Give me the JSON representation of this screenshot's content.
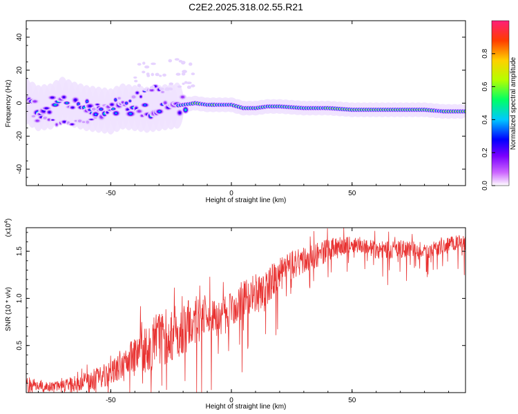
{
  "title": "C2E2.2025.318.02.55.R21",
  "chart_data": [
    {
      "type": "heatmap",
      "xlabel": "Height of straight line (km)",
      "ylabel": "Frequency (Hz)",
      "xlim": [
        -85,
        97
      ],
      "ylim": [
        -50,
        50
      ],
      "xticks": [
        -50,
        0,
        50
      ],
      "yticks": [
        40,
        20,
        0,
        -20,
        -40
      ],
      "ridge": [
        {
          "x": -85,
          "f": 1.0
        },
        {
          "x": -80,
          "f": -3.0
        },
        {
          "x": -75,
          "f": -2.0
        },
        {
          "x": -70,
          "f": 2.0
        },
        {
          "x": -65,
          "f": -1.0
        },
        {
          "x": -60,
          "f": -3.0
        },
        {
          "x": -55,
          "f": -4.0
        },
        {
          "x": -50,
          "f": -5.0
        },
        {
          "x": -45,
          "f": -2.0
        },
        {
          "x": -40,
          "f": -3.0
        },
        {
          "x": -35,
          "f": -4.0
        },
        {
          "x": -30,
          "f": -3.0
        },
        {
          "x": -25,
          "f": -2.0
        },
        {
          "x": -20,
          "f": -1.0
        },
        {
          "x": -15,
          "f": 0.0
        },
        {
          "x": -10,
          "f": -1.0
        },
        {
          "x": -5,
          "f": -1.0
        },
        {
          "x": 0,
          "f": -1.0
        },
        {
          "x": 5,
          "f": -3.0
        },
        {
          "x": 10,
          "f": -3.0
        },
        {
          "x": 15,
          "f": -2.0
        },
        {
          "x": 20,
          "f": -2.0
        },
        {
          "x": 30,
          "f": -3.0
        },
        {
          "x": 40,
          "f": -3.0
        },
        {
          "x": 50,
          "f": -4.0
        },
        {
          "x": 60,
          "f": -4.0
        },
        {
          "x": 70,
          "f": -4.0
        },
        {
          "x": 80,
          "f": -4.0
        },
        {
          "x": 88,
          "f": -5.0
        },
        {
          "x": 97,
          "f": -5.0
        }
      ],
      "secondary_trace": [
        {
          "x": -60,
          "f": -6.0
        },
        {
          "x": -50,
          "f": 0.0
        },
        {
          "x": -40,
          "f": 4.0
        },
        {
          "x": -30,
          "f": 8.0
        }
      ],
      "lower_trace": [
        {
          "x": -82,
          "f": -9.0
        },
        {
          "x": -72,
          "f": -12.0
        },
        {
          "x": -62,
          "f": -11.0
        },
        {
          "x": -55,
          "f": -9.0
        }
      ]
    },
    {
      "type": "colorbar",
      "label": "Normalized spectral amplitude",
      "range": [
        0.0,
        1.0
      ],
      "ticks": [
        "0.0",
        "0.2",
        "0.4",
        "0.6",
        "0.8"
      ]
    },
    {
      "type": "line",
      "xlabel": "Height of straight line (km)",
      "ylabel": "SNR (10 * v/v)",
      "scale_label": "(x10",
      "scale_exp": "4",
      "scale_close": ")",
      "xlim": [
        -85,
        97
      ],
      "ylim": [
        0.0,
        1.75
      ],
      "xticks": [
        -50,
        0,
        50
      ],
      "yticks": [
        0.5,
        1.0,
        1.5
      ],
      "color": "#e8302f",
      "series": [
        {
          "x": [
            -85,
            -80,
            -75,
            -70,
            -65,
            -60,
            -55,
            -50,
            -45,
            -40,
            -35,
            -30,
            -25,
            -20,
            -15,
            -10,
            -5,
            0,
            5,
            10,
            15,
            20,
            25,
            30,
            35,
            40,
            45,
            50,
            55,
            60,
            65,
            70,
            75,
            80,
            85,
            90,
            95,
            97
          ],
          "values": [
            0.12,
            0.1,
            0.08,
            0.1,
            0.12,
            0.15,
            0.2,
            0.25,
            0.35,
            0.45,
            0.55,
            0.65,
            0.7,
            0.75,
            0.85,
            0.9,
            0.85,
            0.95,
            1.05,
            1.1,
            1.2,
            1.3,
            1.4,
            1.45,
            1.5,
            1.55,
            1.58,
            1.6,
            1.58,
            1.55,
            1.55,
            1.55,
            1.55,
            1.52,
            1.55,
            1.6,
            1.62,
            1.6
          ],
          "amp": [
            0.08,
            0.06,
            0.05,
            0.06,
            0.08,
            0.1,
            0.12,
            0.14,
            0.18,
            0.22,
            0.28,
            0.3,
            0.3,
            0.28,
            0.25,
            0.22,
            0.22,
            0.22,
            0.22,
            0.22,
            0.2,
            0.18,
            0.16,
            0.15,
            0.14,
            0.12,
            0.1,
            0.08,
            0.08,
            0.1,
            0.1,
            0.1,
            0.08,
            0.08,
            0.08,
            0.08,
            0.08,
            0.08
          ]
        }
      ]
    }
  ]
}
